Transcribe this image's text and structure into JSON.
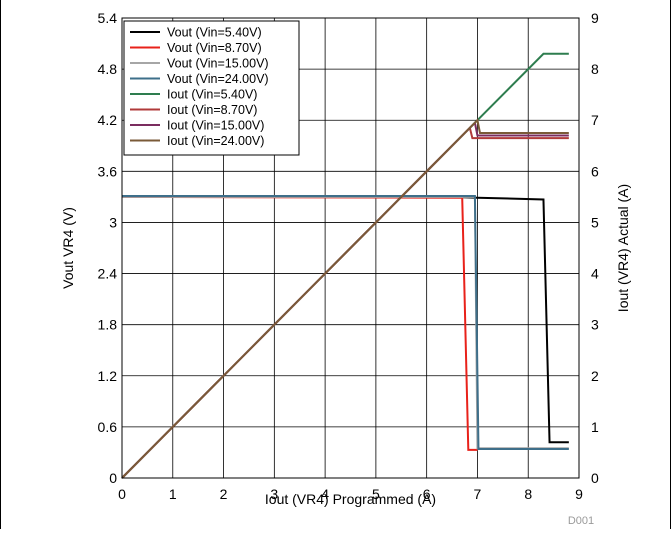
{
  "chart_data": {
    "type": "line",
    "xlabel": "Iout (VR4) Programmed (A)",
    "ylabel_left": "Vout VR4 (V)",
    "ylabel_right": "Iout (VR4) Actual (A)",
    "xlim": [
      0,
      9
    ],
    "ylim_left": [
      0,
      5.4
    ],
    "ylim_right": [
      0,
      9
    ],
    "x_ticks": [
      "0",
      "1",
      "2",
      "3",
      "4",
      "5",
      "6",
      "7",
      "8",
      "9"
    ],
    "y_left_ticks": [
      "0",
      "0.6",
      "1.2",
      "1.8",
      "2.4",
      "3",
      "3.6",
      "4.2",
      "4.8",
      "5.4"
    ],
    "y_right_ticks": [
      "0",
      "1",
      "2",
      "3",
      "4",
      "5",
      "6",
      "7",
      "8",
      "9"
    ],
    "grid": true,
    "legend_position": "top-left",
    "watermark": "D001",
    "series": [
      {
        "name": "Vout (Vin=5.40V)",
        "axis": "left",
        "color": "#000000",
        "points": [
          [
            0,
            3.3
          ],
          [
            6.5,
            3.3
          ],
          [
            7,
            3.29
          ],
          [
            8.3,
            3.27
          ],
          [
            8.42,
            0.42
          ],
          [
            8.8,
            0.42
          ]
        ]
      },
      {
        "name": "Vout (Vin=8.70V)",
        "axis": "left",
        "color": "#e8211a",
        "points": [
          [
            0,
            3.3
          ],
          [
            6.7,
            3.29
          ],
          [
            6.82,
            0.33
          ],
          [
            7,
            0.33
          ]
        ]
      },
      {
        "name": "Vout (Vin=15.00V)",
        "axis": "left",
        "color": "#a6a6a6",
        "points": [
          [
            0,
            3.3
          ],
          [
            6.95,
            3.3
          ],
          [
            7.0,
            0.35
          ],
          [
            8.8,
            0.35
          ]
        ]
      },
      {
        "name": "Vout (Vin=24.00V)",
        "axis": "left",
        "color": "#3e6f8a",
        "points": [
          [
            0,
            3.31
          ],
          [
            6.95,
            3.31
          ],
          [
            7.02,
            0.34
          ],
          [
            8.8,
            0.34
          ]
        ]
      },
      {
        "name": "Iout (Vin=5.40V)",
        "axis": "right",
        "color": "#2e7d4f",
        "points": [
          [
            0,
            0
          ],
          [
            7,
            7
          ],
          [
            8.3,
            8.3
          ],
          [
            8.8,
            8.3
          ]
        ]
      },
      {
        "name": "Iout (Vin=8.70V)",
        "axis": "right",
        "color": "#b03a3a",
        "points": [
          [
            0,
            0
          ],
          [
            6.85,
            6.85
          ],
          [
            6.9,
            6.65
          ],
          [
            7.0,
            6.65
          ],
          [
            8.8,
            6.65
          ]
        ]
      },
      {
        "name": "Iout (Vin=15.00V)",
        "axis": "right",
        "color": "#7b2d5f",
        "points": [
          [
            0,
            0
          ],
          [
            6.95,
            6.95
          ],
          [
            7.0,
            6.7
          ],
          [
            8.8,
            6.7
          ]
        ]
      },
      {
        "name": "Iout (Vin=24.00V)",
        "axis": "right",
        "color": "#7a5a38",
        "points": [
          [
            0,
            0
          ],
          [
            7.0,
            7.0
          ],
          [
            7.05,
            6.75
          ],
          [
            8.8,
            6.75
          ]
        ]
      }
    ]
  }
}
